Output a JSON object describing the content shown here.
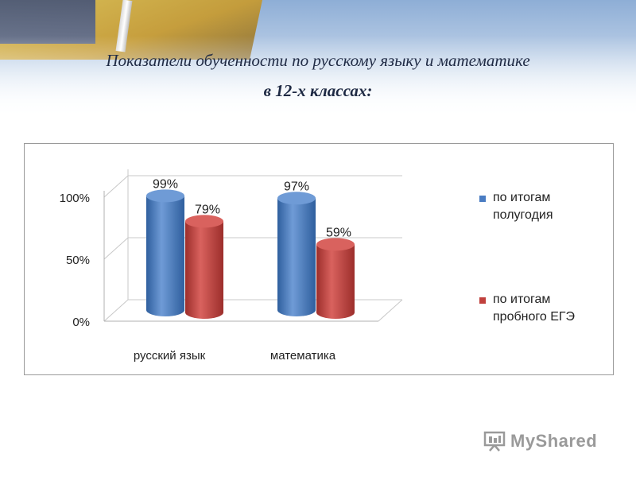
{
  "slide": {
    "title_line1": "Показатели обученности  по русскому языку  и математике",
    "title_line2": "в 12-х классах:"
  },
  "chart_data": {
    "type": "bar",
    "categories": [
      "русский язык",
      "математика"
    ],
    "series": [
      {
        "name": "по итогам полугодия",
        "values": [
          99,
          97
        ],
        "labels": [
          "99%",
          "97%"
        ],
        "color": "#4a7cc2"
      },
      {
        "name": "по итогам пробного ЕГЭ",
        "values": [
          79,
          59
        ],
        "labels": [
          "79%",
          "59%"
        ],
        "color": "#c0403c"
      }
    ],
    "ylim": [
      0,
      100
    ],
    "yticks": [
      "0%",
      "50%",
      "100%"
    ],
    "legend_position": "right",
    "grid": true
  },
  "legend": {
    "item1_line1": "по итогам",
    "item1_line2": "полугодия",
    "item2_line1": "по итогам",
    "item2_line2": "пробного ЕГЭ"
  },
  "watermark": {
    "text": "MyShared",
    "icon": "presentation-board-icon"
  }
}
